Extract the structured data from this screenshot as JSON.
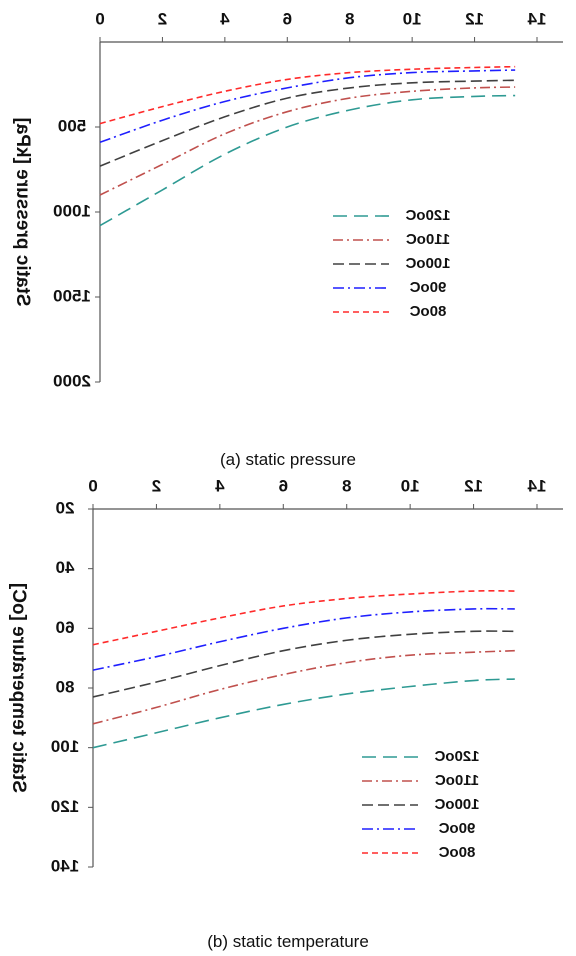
{
  "chart_data": [
    {
      "type": "line",
      "ylabel": "Static pressure [kPa]",
      "caption": "(a) static pressure",
      "xlim": [
        0,
        14
      ],
      "ylim": [
        2000,
        0
      ],
      "x_ticks": [
        0,
        2,
        4,
        6,
        8,
        10,
        12,
        14
      ],
      "y_ticks": [
        500,
        1000,
        1500,
        2000
      ],
      "legend_position": "lower-right",
      "x": [
        0,
        2,
        4,
        6,
        8,
        10,
        12,
        13.3
      ],
      "series": [
        {
          "name": "120oC",
          "color": "#2e9a93",
          "dash": "14,7",
          "values": [
            1080,
            870,
            660,
            500,
            400,
            340,
            320,
            315
          ]
        },
        {
          "name": "110oC",
          "color": "#c0504d",
          "dash": "10,4,2,4",
          "values": [
            900,
            720,
            540,
            410,
            330,
            290,
            270,
            265
          ]
        },
        {
          "name": "100oC",
          "color": "#404040",
          "dash": "11,5",
          "values": [
            730,
            580,
            440,
            330,
            270,
            240,
            230,
            225
          ]
        },
        {
          "name": "90oC",
          "color": "#1f1fff",
          "dash": "11,4,2,4",
          "values": [
            590,
            460,
            350,
            270,
            210,
            180,
            170,
            165
          ]
        },
        {
          "name": "80oC",
          "color": "#ff2a2a",
          "dash": "6,4",
          "values": [
            480,
            380,
            290,
            220,
            180,
            160,
            150,
            145
          ]
        }
      ]
    },
    {
      "type": "line",
      "ylabel": "Static temperature [oC]",
      "caption": "(b) static temperature",
      "xlim": [
        0,
        14
      ],
      "ylim": [
        140,
        20
      ],
      "x_ticks": [
        0,
        2,
        4,
        6,
        8,
        10,
        12,
        14
      ],
      "y_ticks": [
        20,
        40,
        60,
        80,
        100,
        120,
        140
      ],
      "legend_position": "lower-right",
      "x": [
        0,
        2,
        4,
        6,
        8,
        10,
        12,
        13.3
      ],
      "series": [
        {
          "name": "120oC",
          "color": "#2e9a93",
          "dash": "14,7",
          "values": [
            100,
            95,
            90,
            85.5,
            82,
            79.5,
            77.5,
            77
          ]
        },
        {
          "name": "110oC",
          "color": "#c0504d",
          "dash": "10,4,2,4",
          "values": [
            92,
            86.5,
            80.5,
            75.5,
            71.5,
            69,
            68,
            67.5
          ]
        },
        {
          "name": "100oC",
          "color": "#404040",
          "dash": "11,5",
          "values": [
            83,
            78,
            72.5,
            67.5,
            64,
            62,
            61,
            61
          ]
        },
        {
          "name": "90oC",
          "color": "#1f1fff",
          "dash": "11,4,2,4",
          "values": [
            74,
            69.5,
            64.5,
            60,
            56.5,
            54.5,
            53.5,
            53.5
          ]
        },
        {
          "name": "80oC",
          "color": "#ff2a2a",
          "dash": "6,4",
          "values": [
            65.5,
            61,
            56.5,
            52.5,
            50,
            48.5,
            47.5,
            47.5
          ]
        }
      ]
    }
  ]
}
